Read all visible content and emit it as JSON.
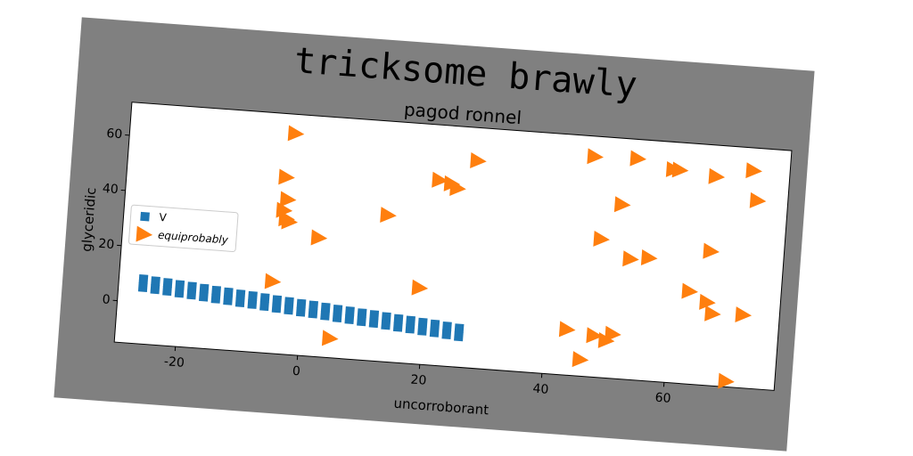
{
  "chart_data": {
    "type": "scatter",
    "title": "tricksome brawly",
    "subtitle": "pagod ronnel",
    "xlabel": "uncorroborant",
    "ylabel": "glyceridic",
    "xlim": [
      -30,
      78
    ],
    "ylim": [
      -15,
      72
    ],
    "xticks": [
      -20,
      0,
      20,
      40,
      60
    ],
    "yticks": [
      0,
      20,
      40,
      60
    ],
    "legend": "center left",
    "series": [
      {
        "name": "V",
        "color": "#1f77b4",
        "marker": "square",
        "x": [
          -26,
          -24,
          -22,
          -20,
          -18,
          -16,
          -14,
          -12,
          -10,
          -8,
          -6,
          -4,
          -2,
          0,
          2,
          4,
          6,
          8,
          10,
          12,
          14,
          16,
          18,
          20,
          22,
          24,
          26,
          -26,
          -24,
          -22,
          -20,
          -18,
          -16,
          -14,
          -12,
          -10,
          -8,
          -6,
          -4,
          -2,
          0,
          2,
          4,
          6,
          8,
          10,
          12,
          14,
          16,
          18,
          20,
          22,
          24,
          26
        ],
        "values": [
          8.5,
          8.1,
          7.8,
          7.4,
          7.1,
          6.7,
          6.3,
          6.0,
          5.6,
          5.3,
          4.9,
          4.5,
          4.2,
          3.8,
          3.5,
          3.1,
          2.7,
          2.4,
          2.0,
          1.7,
          1.3,
          0.9,
          0.6,
          0.2,
          -0.1,
          -0.5,
          -0.9,
          5.5,
          5.1,
          4.8,
          4.4,
          4.1,
          3.7,
          3.3,
          3.0,
          2.6,
          2.3,
          1.9,
          1.5,
          1.2,
          0.8,
          0.5,
          0.1,
          -0.3,
          -0.6,
          -1.0,
          -1.3,
          -1.7,
          -2.1,
          -2.4,
          -2.8,
          -3.1,
          -3.5,
          -3.9
        ]
      },
      {
        "name": "equiprobably",
        "color": "#ff7f0e",
        "marker": "triangle-right",
        "x": [
          -3,
          -4,
          -3.5,
          -4,
          -3.5,
          -3,
          2,
          13,
          -5,
          19,
          5,
          27,
          21,
          23,
          24,
          46,
          53,
          59,
          60,
          66,
          72,
          73,
          51,
          48,
          53,
          56,
          66,
          63,
          66,
          67,
          72,
          43.5,
          48,
          51,
          50,
          46,
          70
        ],
        "values": [
          65,
          49,
          41,
          37,
          34,
          33,
          28,
          38,
          11,
          12.6,
          -8,
          60,
          52,
          51,
          49.5,
          64.6,
          65,
          62,
          62,
          60.6,
          63.7,
          53,
          48,
          35,
          28.6,
          29.5,
          33.5,
          18.5,
          15,
          11,
          11.4,
          1.5,
          0,
          1,
          -1.5,
          -9,
          -13
        ]
      }
    ]
  }
}
